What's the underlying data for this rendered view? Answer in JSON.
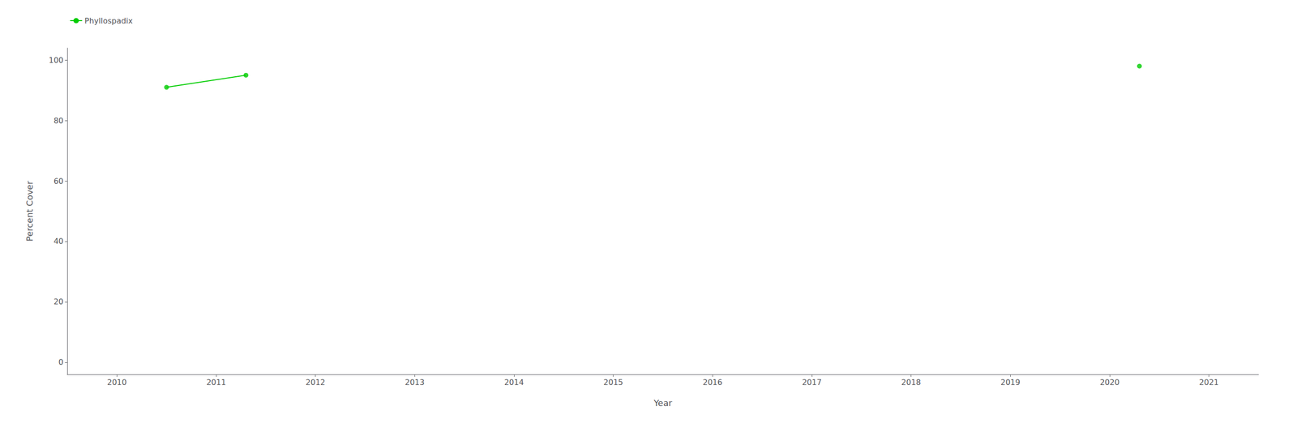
{
  "chart_data": {
    "type": "scatter",
    "x_label": "Year",
    "y_label": "Percent Cover",
    "x": [
      2010.5,
      2011.3,
      2020.3
    ],
    "series": [
      {
        "name": "Phyllospadix",
        "color": "#00CC00",
        "marker": "circle",
        "values": [
          91,
          95,
          98
        ],
        "segments": [
          [
            0,
            1
          ]
        ]
      }
    ],
    "xlim": [
      2009.5,
      2021.5
    ],
    "xticks": [
      2010,
      2011,
      2012,
      2013,
      2014,
      2015,
      2016,
      2017,
      2018,
      2019,
      2020,
      2021
    ],
    "ylim": [
      -4,
      104
    ],
    "yticks": [
      0,
      20,
      40,
      60,
      80,
      100
    ],
    "grid": false,
    "legend": "top-left",
    "background_color": "#ffffff"
  }
}
